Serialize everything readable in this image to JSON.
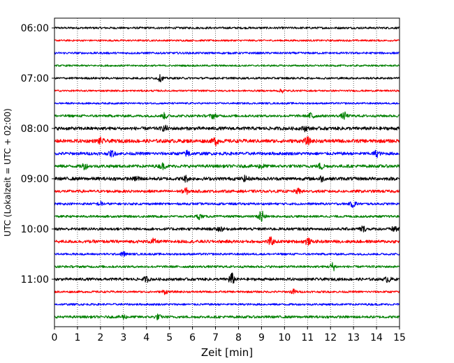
{
  "chart_data": {
    "type": "line",
    "title": "",
    "xlabel": "Zeit  [min]",
    "ylabel": "UTC (Lokalzeit = UTC + 02:00)",
    "xlim": [
      0,
      15
    ],
    "xticks": [
      0,
      1,
      2,
      3,
      4,
      5,
      6,
      7,
      8,
      9,
      10,
      11,
      12,
      13,
      14,
      15
    ],
    "ytick_labels": [
      "06:00",
      "07:00",
      "08:00",
      "09:00",
      "10:00",
      "11:00"
    ],
    "grid": "vertical dotted at each minute",
    "trace_colors": [
      "#000000",
      "#ff0000",
      "#0000ff",
      "#008000"
    ],
    "series": [
      {
        "start": "06:00",
        "color": "#000000",
        "amplitude": 0.16,
        "events": []
      },
      {
        "start": "06:15",
        "color": "#ff0000",
        "amplitude": 0.14,
        "events": []
      },
      {
        "start": "06:30",
        "color": "#0000ff",
        "amplitude": 0.16,
        "events": []
      },
      {
        "start": "06:45",
        "color": "#008000",
        "amplitude": 0.14,
        "events": []
      },
      {
        "start": "07:00",
        "color": "#000000",
        "amplitude": 0.16,
        "events": [
          {
            "t": 4.6,
            "a": 0.45
          }
        ]
      },
      {
        "start": "07:15",
        "color": "#ff0000",
        "amplitude": 0.14,
        "events": [
          {
            "t": 9.9,
            "a": 0.25
          }
        ]
      },
      {
        "start": "07:30",
        "color": "#0000ff",
        "amplitude": 0.14,
        "events": []
      },
      {
        "start": "07:45",
        "color": "#008000",
        "amplitude": 0.2,
        "events": [
          {
            "t": 4.8,
            "a": 0.4
          },
          {
            "t": 6.9,
            "a": 0.35
          },
          {
            "t": 11.2,
            "a": 0.7
          },
          {
            "t": 12.6,
            "a": 0.5
          }
        ]
      },
      {
        "start": "08:00",
        "color": "#000000",
        "amplitude": 0.26,
        "events": [
          {
            "t": 4.8,
            "a": 0.35
          },
          {
            "t": 10.9,
            "a": 0.3
          }
        ]
      },
      {
        "start": "08:15",
        "color": "#ff0000",
        "amplitude": 0.28,
        "events": [
          {
            "t": 2.0,
            "a": 0.4
          },
          {
            "t": 7.0,
            "a": 0.55
          },
          {
            "t": 11.0,
            "a": 0.45
          }
        ]
      },
      {
        "start": "08:30",
        "color": "#0000ff",
        "amplitude": 0.24,
        "events": [
          {
            "t": 2.5,
            "a": 0.4
          },
          {
            "t": 5.8,
            "a": 0.45
          },
          {
            "t": 14.0,
            "a": 0.45
          }
        ]
      },
      {
        "start": "08:45",
        "color": "#008000",
        "amplitude": 0.24,
        "events": [
          {
            "t": 1.3,
            "a": 0.4
          },
          {
            "t": 4.7,
            "a": 0.4
          },
          {
            "t": 9.0,
            "a": 0.35
          },
          {
            "t": 11.6,
            "a": 0.5
          }
        ]
      },
      {
        "start": "09:00",
        "color": "#000000",
        "amplitude": 0.26,
        "events": [
          {
            "t": 3.6,
            "a": 0.35
          },
          {
            "t": 5.7,
            "a": 0.4
          },
          {
            "t": 8.3,
            "a": 0.35
          },
          {
            "t": 11.6,
            "a": 0.35
          }
        ]
      },
      {
        "start": "09:15",
        "color": "#ff0000",
        "amplitude": 0.22,
        "events": [
          {
            "t": 5.7,
            "a": 0.45
          },
          {
            "t": 10.6,
            "a": 0.35
          }
        ]
      },
      {
        "start": "09:30",
        "color": "#0000ff",
        "amplitude": 0.18,
        "events": [
          {
            "t": 2.0,
            "a": 0.3
          },
          {
            "t": 13.0,
            "a": 0.55
          }
        ]
      },
      {
        "start": "09:45",
        "color": "#008000",
        "amplitude": 0.18,
        "events": [
          {
            "t": 6.3,
            "a": 0.35
          },
          {
            "t": 9.0,
            "a": 1.1
          }
        ]
      },
      {
        "start": "10:00",
        "color": "#000000",
        "amplitude": 0.22,
        "events": [
          {
            "t": 7.2,
            "a": 0.35
          },
          {
            "t": 13.4,
            "a": 0.4
          },
          {
            "t": 14.8,
            "a": 0.5
          }
        ]
      },
      {
        "start": "10:15",
        "color": "#ff0000",
        "amplitude": 0.24,
        "events": [
          {
            "t": 4.3,
            "a": 0.35
          },
          {
            "t": 9.4,
            "a": 0.55
          },
          {
            "t": 11.0,
            "a": 0.45
          }
        ]
      },
      {
        "start": "10:30",
        "color": "#0000ff",
        "amplitude": 0.16,
        "events": [
          {
            "t": 3.0,
            "a": 0.35
          }
        ]
      },
      {
        "start": "10:45",
        "color": "#008000",
        "amplitude": 0.18,
        "events": [
          {
            "t": 12.1,
            "a": 0.6
          }
        ]
      },
      {
        "start": "11:00",
        "color": "#000000",
        "amplitude": 0.22,
        "events": [
          {
            "t": 4.0,
            "a": 0.35
          },
          {
            "t": 7.7,
            "a": 0.9
          },
          {
            "t": 14.5,
            "a": 0.4
          }
        ]
      },
      {
        "start": "11:15",
        "color": "#ff0000",
        "amplitude": 0.16,
        "events": [
          {
            "t": 4.8,
            "a": 0.3
          },
          {
            "t": 10.4,
            "a": 0.35
          }
        ]
      },
      {
        "start": "11:30",
        "color": "#0000ff",
        "amplitude": 0.16,
        "events": []
      },
      {
        "start": "11:45",
        "color": "#008000",
        "amplitude": 0.2,
        "events": [
          {
            "t": 3.0,
            "a": 0.3
          },
          {
            "t": 4.5,
            "a": 0.35
          }
        ]
      }
    ]
  }
}
